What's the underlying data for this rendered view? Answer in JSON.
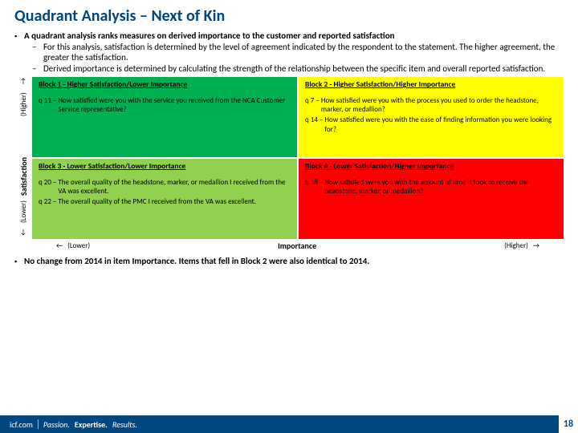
{
  "title": "Quadrant Analysis – Next of Kin",
  "intro_main": "A quadrant analysis ranks measures on derived importance to the customer and reported satisfaction",
  "intro_sub1": "For this analysis, satisfaction is determined by the level of agreement indicated by the respondent to the statement. The higher agreement, the greater the satisfaction.",
  "intro_sub2": "Derived importance is determined by calculating the strength of the relationship between the specific item and overall reported satisfaction.",
  "axis": {
    "y_label": "Satisfaction",
    "x_label": "Importance",
    "higher": "(Higher)",
    "lower": "(Lower)",
    "arr_up": "↑",
    "arr_down": "↓",
    "arr_left": "←",
    "arr_right": "→"
  },
  "blocks": {
    "b1": {
      "title": "Block 1 - Higher Satisfaction/Lower Importance",
      "items": [
        {
          "q": "q 11 –",
          "t": "How satisfied were you with the service you received from the NCA Customer Service representative?"
        }
      ]
    },
    "b2": {
      "title": "Block 2 - Higher Satisfaction/Higher Importance",
      "items": [
        {
          "q": "q 7 –",
          "t": "How satisfied were you with the process you used to order the headstone, marker, or medallion?"
        },
        {
          "q": "q 14 –",
          "t": "How satisfied were you with the ease of finding information you were looking for?"
        }
      ]
    },
    "b3": {
      "title": "Block 3 - Lower Satisfaction/Lower Importance",
      "items": [
        {
          "q": "q 20 –",
          "t": "The overall quality of the headstone, marker, or medallion I received from the VA was excellent."
        },
        {
          "q": "q 22 –",
          "t": "The overall quality of the PMC I received from the VA was excellent."
        }
      ]
    },
    "b4": {
      "title": "Block 4 - Lower Satisfaction/Higher Importance",
      "items": [
        {
          "q": "q 18 –",
          "t": "How satisfied were you with the amount of time it took to receive the headstone, marker, or medallion?"
        }
      ]
    }
  },
  "conclusion": "No change from 2014 in item Importance. Items that fell in Block 2 were also identical to 2014.",
  "footer": {
    "site": "icf.com",
    "tag_passion": "Passion.",
    "tag_expertise": "Expertise.",
    "tag_results": "Results.",
    "page": "18"
  },
  "colors": {
    "brand_blue": "#00467f",
    "b1": "#00b050",
    "b2": "#ffff00",
    "b3": "#92d050",
    "b4": "#ff0000"
  }
}
